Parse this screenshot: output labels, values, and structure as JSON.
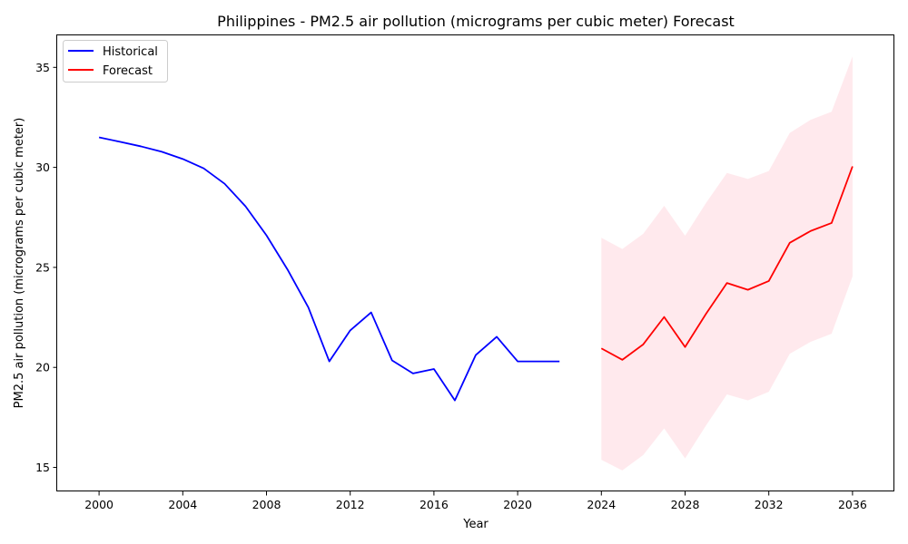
{
  "chart_data": {
    "type": "line",
    "title": "Philippines - PM2.5 air pollution (micrograms per cubic meter) Forecast",
    "xlabel": "Year",
    "ylabel": "PM2.5 air pollution (micrograms per cubic meter)",
    "xlim": [
      1998,
      2038
    ],
    "ylim": [
      13.8,
      36.6
    ],
    "x_ticks": [
      2000,
      2004,
      2008,
      2012,
      2016,
      2020,
      2024,
      2028,
      2032,
      2036
    ],
    "y_ticks": [
      15,
      20,
      25,
      30,
      35
    ],
    "grid": false,
    "legend_position": "top-left",
    "series": [
      {
        "name": "Historical",
        "color": "#0000ff",
        "x": [
          2000,
          2001,
          2002,
          2003,
          2004,
          2005,
          2006,
          2007,
          2008,
          2009,
          2010,
          2011,
          2012,
          2013,
          2014,
          2015,
          2016,
          2017,
          2018,
          2019,
          2020,
          2021,
          2022
        ],
        "y": [
          31.5,
          31.28,
          31.05,
          30.78,
          30.42,
          29.95,
          29.18,
          28.05,
          26.6,
          24.9,
          23.0,
          20.3,
          21.85,
          22.75,
          20.35,
          19.7,
          19.92,
          18.35,
          20.62,
          21.53,
          20.3,
          20.3,
          20.3
        ]
      },
      {
        "name": "Forecast",
        "color": "#ff0000",
        "x": [
          2024,
          2025,
          2026,
          2027,
          2028,
          2029,
          2030,
          2031,
          2032,
          2033,
          2034,
          2035,
          2036
        ],
        "y": [
          20.95,
          20.38,
          21.15,
          22.52,
          21.02,
          22.68,
          24.22,
          23.88,
          24.32,
          26.23,
          26.82,
          27.22,
          30.05
        ]
      }
    ],
    "confidence_band": {
      "series": "Forecast",
      "color": "#ffc0cb",
      "x": [
        2024,
        2025,
        2026,
        2027,
        2028,
        2029,
        2030,
        2031,
        2032,
        2033,
        2034,
        2035,
        2036
      ],
      "lower": [
        15.38,
        14.85,
        15.62,
        16.95,
        15.45,
        17.1,
        18.65,
        18.35,
        18.78,
        20.68,
        21.28,
        21.68,
        24.55
      ],
      "upper": [
        26.48,
        25.92,
        26.68,
        28.08,
        26.58,
        28.22,
        29.72,
        29.42,
        29.82,
        31.72,
        32.38,
        32.78,
        35.55
      ]
    }
  }
}
